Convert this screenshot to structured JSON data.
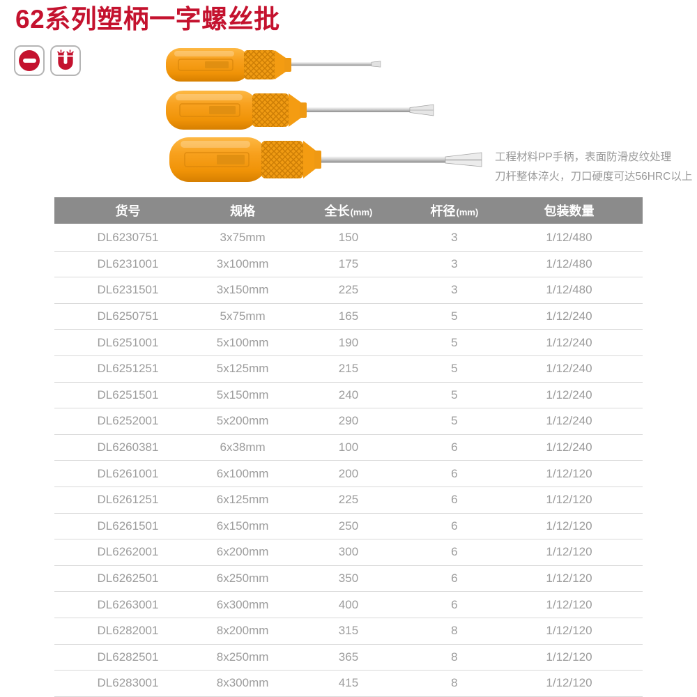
{
  "page": {
    "title": "62系列塑柄一字螺丝批",
    "description_lines": [
      "工程材料PP手柄，表面防滑皮纹处理",
      "刀杆整体淬火，刀口硬度可达56HRC以上"
    ]
  },
  "feature_icons": [
    "slotted-drive-icon",
    "magnet-icon"
  ],
  "colors": {
    "brand_red": "#c4122e",
    "table_header_bg": "#8b8b8b",
    "table_text": "#9c9c9c",
    "row_border": "#d9d9d9",
    "description_text": "#9a9a9a",
    "handle_orange": "#f8a11e"
  },
  "table": {
    "columns": [
      {
        "label": "货号"
      },
      {
        "label": "规格"
      },
      {
        "label": "全长",
        "unit": "(mm)"
      },
      {
        "label": "杆径",
        "unit": "(mm)"
      },
      {
        "label": "包装数量"
      }
    ],
    "rows": [
      [
        "DL6230751",
        "3x75mm",
        "150",
        "3",
        "1/12/480"
      ],
      [
        "DL6231001",
        "3x100mm",
        "175",
        "3",
        "1/12/480"
      ],
      [
        "DL6231501",
        "3x150mm",
        "225",
        "3",
        "1/12/480"
      ],
      [
        "DL6250751",
        "5x75mm",
        "165",
        "5",
        "1/12/240"
      ],
      [
        "DL6251001",
        "5x100mm",
        "190",
        "5",
        "1/12/240"
      ],
      [
        "DL6251251",
        "5x125mm",
        "215",
        "5",
        "1/12/240"
      ],
      [
        "DL6251501",
        "5x150mm",
        "240",
        "5",
        "1/12/240"
      ],
      [
        "DL6252001",
        "5x200mm",
        "290",
        "5",
        "1/12/240"
      ],
      [
        "DL6260381",
        "6x38mm",
        "100",
        "6",
        "1/12/240"
      ],
      [
        "DL6261001",
        "6x100mm",
        "200",
        "6",
        "1/12/120"
      ],
      [
        "DL6261251",
        "6x125mm",
        "225",
        "6",
        "1/12/120"
      ],
      [
        "DL6261501",
        "6x150mm",
        "250",
        "6",
        "1/12/120"
      ],
      [
        "DL6262001",
        "6x200mm",
        "300",
        "6",
        "1/12/120"
      ],
      [
        "DL6262501",
        "6x250mm",
        "350",
        "6",
        "1/12/120"
      ],
      [
        "DL6263001",
        "6x300mm",
        "400",
        "6",
        "1/12/120"
      ],
      [
        "DL6282001",
        "8x200mm",
        "315",
        "8",
        "1/12/120"
      ],
      [
        "DL6282501",
        "8x250mm",
        "365",
        "8",
        "1/12/120"
      ],
      [
        "DL6283001",
        "8x300mm",
        "415",
        "8",
        "1/12/120"
      ]
    ]
  }
}
